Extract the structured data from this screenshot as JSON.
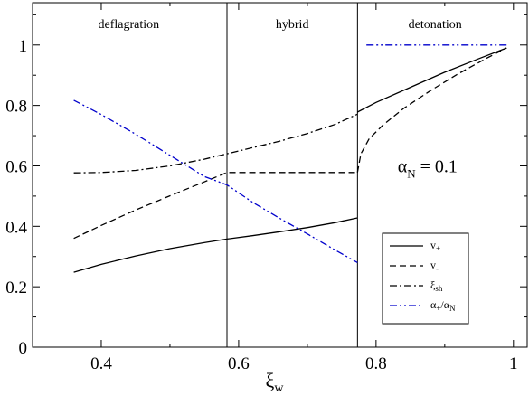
{
  "chart_data": {
    "type": "line",
    "xlabel": "ξ",
    "xlabel_sub": "w",
    "ylabel": "",
    "xlim": [
      0.3,
      1.02
    ],
    "ylim": [
      0,
      1.14
    ],
    "x_ticks": [
      0.4,
      0.6,
      0.8,
      1.0
    ],
    "x_tick_labels": [
      "0.4",
      "0.6",
      "0.8",
      "1"
    ],
    "y_ticks": [
      0,
      0.2,
      0.4,
      0.6,
      0.8,
      1.0
    ],
    "y_tick_labels": [
      "0",
      "0.2",
      "0.4",
      "0.6",
      "0.8",
      "1"
    ],
    "grid": false,
    "legend_position": "lower-right",
    "region_boundaries": [
      0.583,
      0.773
    ],
    "regions": [
      {
        "label": "deflagration",
        "x_center": 0.44
      },
      {
        "label": "hybrid",
        "x_center": 0.678
      },
      {
        "label": "detonation",
        "x_center": 0.886
      }
    ],
    "annotation": {
      "alpha": "α",
      "sub": "N",
      "rest": " = 0.1",
      "x": 0.875,
      "y": 0.6
    },
    "series": [
      {
        "name": "v",
        "name_sub": "+",
        "color": "#000000",
        "dash": "",
        "segments": [
          {
            "x": [
              0.36,
              0.4,
              0.45,
              0.5,
              0.55,
              0.583,
              0.62,
              0.66,
              0.7,
              0.74,
              0.773
            ],
            "y": [
              0.248,
              0.274,
              0.302,
              0.326,
              0.346,
              0.358,
              0.369,
              0.382,
              0.396,
              0.412,
              0.428
            ]
          },
          {
            "x": [
              0.773,
              0.8,
              0.85,
              0.9,
              0.95,
              0.99
            ],
            "y": [
              0.778,
              0.81,
              0.86,
              0.91,
              0.955,
              0.99
            ]
          }
        ]
      },
      {
        "name": "v",
        "name_sub": "-",
        "color": "#000000",
        "dash": "7 4",
        "segments": [
          {
            "x": [
              0.36,
              0.4,
              0.45,
              0.5,
              0.55,
              0.583,
              0.62,
              0.66,
              0.7,
              0.74,
              0.773
            ],
            "y": [
              0.36,
              0.403,
              0.454,
              0.501,
              0.547,
              0.578,
              0.578,
              0.578,
              0.578,
              0.578,
              0.578
            ]
          },
          {
            "x": [
              0.773,
              0.778,
              0.79,
              0.81,
              0.84,
              0.88,
              0.92,
              0.96,
              0.99
            ],
            "y": [
              0.578,
              0.64,
              0.69,
              0.735,
              0.79,
              0.85,
              0.905,
              0.955,
              0.99
            ]
          }
        ]
      },
      {
        "name": "ξ",
        "name_sub": "sh",
        "color": "#000000",
        "dash": "8 3 2 3",
        "segments": [
          {
            "x": [
              0.36,
              0.4,
              0.45,
              0.5,
              0.55,
              0.583,
              0.62,
              0.66,
              0.7,
              0.74,
              0.773
            ],
            "y": [
              0.577,
              0.578,
              0.585,
              0.6,
              0.622,
              0.64,
              0.66,
              0.682,
              0.707,
              0.737,
              0.771
            ]
          }
        ]
      },
      {
        "name": "α",
        "name_sub": "+",
        "name_rest": "/α",
        "name_sub2": "N",
        "color": "#0000cc",
        "dash": "8 3 2 3 2 3",
        "segments": [
          {
            "x": [
              0.36,
              0.4,
              0.45,
              0.5,
              0.55,
              0.583,
              0.62,
              0.66,
              0.7,
              0.74,
              0.773
            ],
            "y": [
              0.817,
              0.77,
              0.705,
              0.635,
              0.565,
              0.537,
              0.48,
              0.426,
              0.375,
              0.322,
              0.28
            ]
          },
          {
            "x": [
              0.786,
              0.99
            ],
            "y": [
              1.0,
              1.0
            ]
          }
        ]
      }
    ]
  }
}
